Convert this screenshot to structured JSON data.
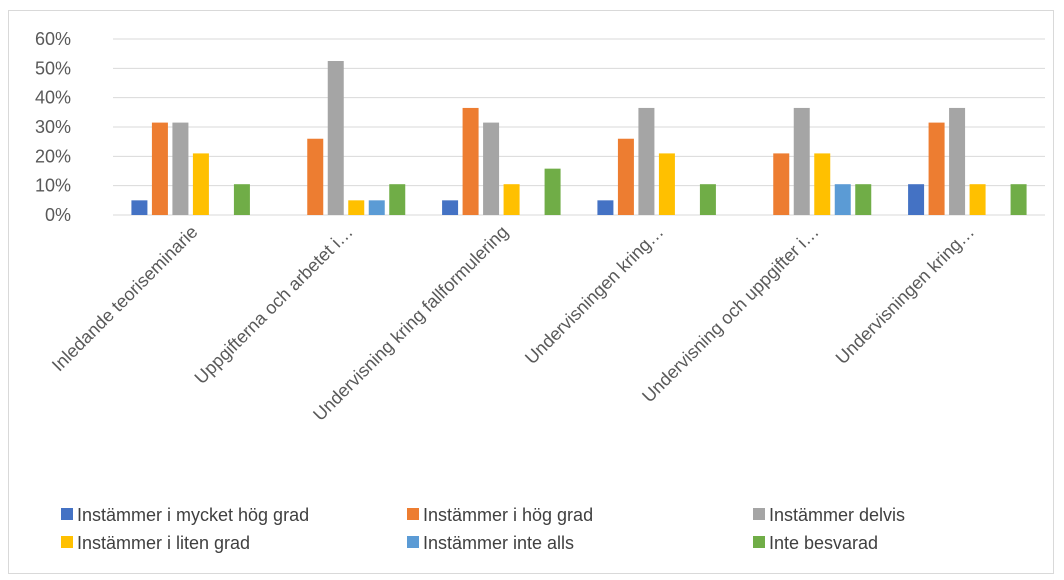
{
  "chart_data": {
    "type": "bar",
    "categories": [
      "Inledande teoriseminarie",
      "Uppgifterna och arbetet i…",
      "Undervisning kring fallformulering",
      "Undervisningen kring…",
      "Undervisning och uppgifter i…",
      "Undervisningen kring…"
    ],
    "series": [
      {
        "name": "Instämmer i mycket hög grad",
        "color": "#4472C4",
        "values": [
          0.05,
          0.0,
          0.05,
          0.05,
          0.0,
          0.105
        ]
      },
      {
        "name": "Instämmer i hög grad",
        "color": "#ED7D31",
        "values": [
          0.315,
          0.26,
          0.365,
          0.26,
          0.21,
          0.315
        ]
      },
      {
        "name": "Instämmer delvis",
        "color": "#A5A5A5",
        "values": [
          0.315,
          0.525,
          0.315,
          0.365,
          0.365,
          0.365
        ]
      },
      {
        "name": "Instämmer i liten grad",
        "color": "#FFC000",
        "values": [
          0.21,
          0.05,
          0.105,
          0.21,
          0.21,
          0.105
        ]
      },
      {
        "name": "Instämmer inte alls",
        "color": "#5B9BD5",
        "values": [
          0.0,
          0.05,
          0.0,
          0.0,
          0.105,
          0.0
        ]
      },
      {
        "name": "Inte besvarad",
        "color": "#70AD47",
        "values": [
          0.105,
          0.105,
          0.158,
          0.105,
          0.105,
          0.105
        ]
      }
    ],
    "ylim": [
      0,
      0.6
    ],
    "yticks": [
      "0%",
      "10%",
      "20%",
      "30%",
      "40%",
      "50%",
      "60%"
    ],
    "grid": true,
    "legend_position": "bottom"
  }
}
